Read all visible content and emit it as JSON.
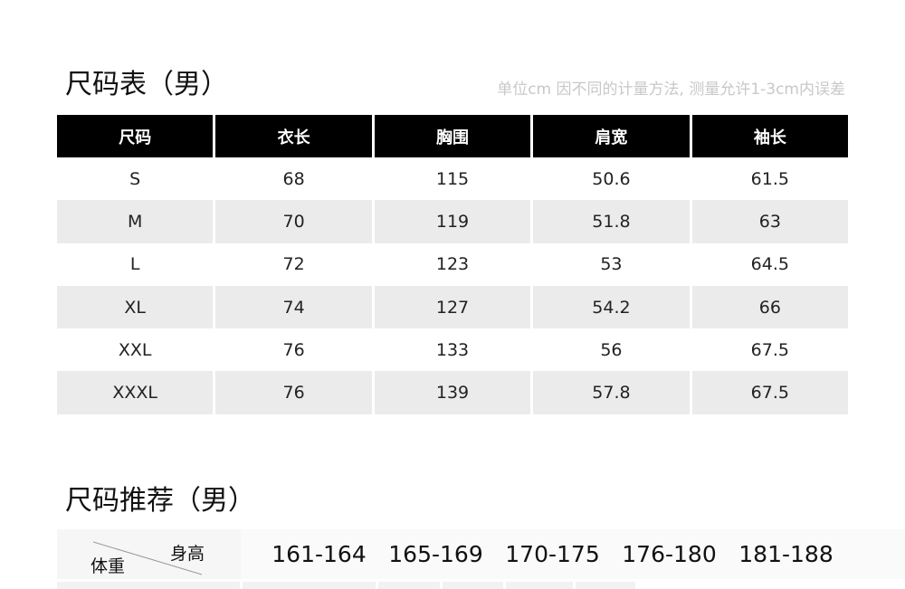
{
  "size_table": {
    "title": "尺码表（男）",
    "note": "单位cm 因不同的计量方法, 测量允许1-3cm内误差",
    "headers": [
      "尺码",
      "衣长",
      "胸围",
      "肩宽",
      "袖长"
    ],
    "rows": [
      [
        "S",
        "68",
        "115",
        "50.6",
        "61.5"
      ],
      [
        "M",
        "70",
        "119",
        "51.8",
        "63"
      ],
      [
        "L",
        "72",
        "123",
        "53",
        "64.5"
      ],
      [
        "XL",
        "74",
        "127",
        "54.2",
        "66"
      ],
      [
        "XXL",
        "76",
        "133",
        "56",
        "67.5"
      ],
      [
        "XXXL",
        "76",
        "139",
        "57.8",
        "67.5"
      ]
    ]
  },
  "recommend": {
    "title": "尺码推荐（男）",
    "weight_label": "体重",
    "height_label": "身高",
    "heights": [
      "161-164",
      "165-169",
      "170-175",
      "176-180",
      "181-188"
    ]
  }
}
